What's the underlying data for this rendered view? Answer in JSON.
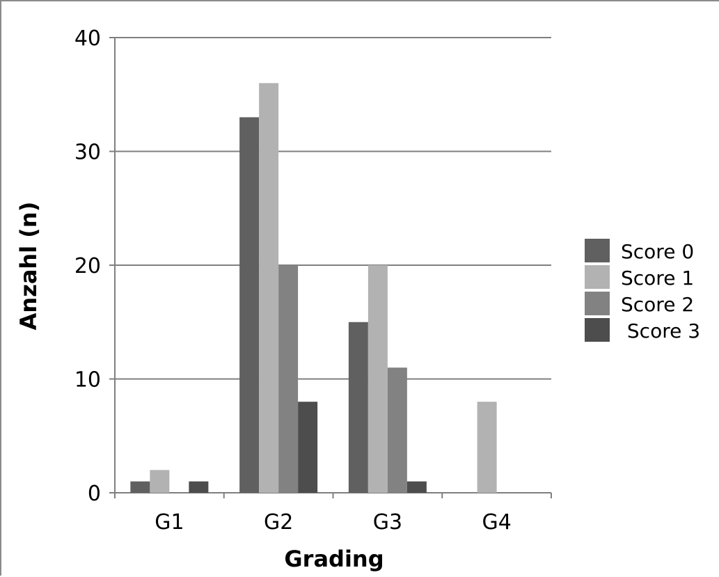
{
  "chart_data": {
    "type": "bar",
    "title": "",
    "xlabel": "Grading",
    "ylabel": "Anzahl (n)",
    "categories": [
      "G1",
      "G2",
      "G3",
      "G4"
    ],
    "ylim": [
      0,
      40
    ],
    "yticks": [
      0,
      10,
      20,
      30,
      40
    ],
    "grid": true,
    "legend_position": "right",
    "series": [
      {
        "name": "Score 0",
        "color": "#606060",
        "values": [
          1,
          33,
          15,
          0
        ]
      },
      {
        "name": "Score 1",
        "color": "#b2b2b2",
        "values": [
          2,
          36,
          20,
          8
        ]
      },
      {
        "name": "Score 2",
        "color": "#828282",
        "values": [
          0,
          20,
          11,
          0
        ]
      },
      {
        "name": " Score 3",
        "color": "#4d4d4d",
        "values": [
          1,
          8,
          1,
          0
        ]
      }
    ]
  }
}
